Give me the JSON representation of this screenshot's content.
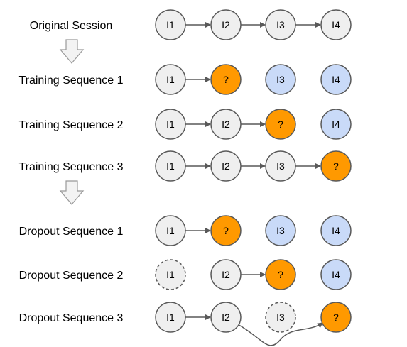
{
  "colors": {
    "default": "#efefef",
    "target": "#ff9900",
    "future": "#c9daf8",
    "stroke": "#595959",
    "edge": "#595959",
    "arrow_fill": "#f3f3f3"
  },
  "rows": [
    {
      "label": "Original Session",
      "nodes": [
        {
          "text": "I1",
          "kind": "default"
        },
        {
          "text": "I2",
          "kind": "default"
        },
        {
          "text": "I3",
          "kind": "default"
        },
        {
          "text": "I4",
          "kind": "default"
        }
      ],
      "edges": [
        [
          0,
          1
        ],
        [
          1,
          2
        ],
        [
          2,
          3
        ]
      ]
    },
    {
      "label": "Training Sequence 1",
      "nodes": [
        {
          "text": "I1",
          "kind": "default"
        },
        {
          "text": "?",
          "kind": "target"
        },
        {
          "text": "I3",
          "kind": "future"
        },
        {
          "text": "I4",
          "kind": "future"
        }
      ],
      "edges": [
        [
          0,
          1
        ]
      ]
    },
    {
      "label": "Training Sequence 2",
      "nodes": [
        {
          "text": "I1",
          "kind": "default"
        },
        {
          "text": "I2",
          "kind": "default"
        },
        {
          "text": "?",
          "kind": "target"
        },
        {
          "text": "I4",
          "kind": "future"
        }
      ],
      "edges": [
        [
          0,
          1
        ],
        [
          1,
          2
        ]
      ]
    },
    {
      "label": "Training Sequence 3",
      "nodes": [
        {
          "text": "I1",
          "kind": "default"
        },
        {
          "text": "I2",
          "kind": "default"
        },
        {
          "text": "I3",
          "kind": "default"
        },
        {
          "text": "?",
          "kind": "target"
        }
      ],
      "edges": [
        [
          0,
          1
        ],
        [
          1,
          2
        ],
        [
          2,
          3
        ]
      ]
    },
    {
      "label": "Dropout Sequence 1",
      "nodes": [
        {
          "text": "I1",
          "kind": "default"
        },
        {
          "text": "?",
          "kind": "target"
        },
        {
          "text": "I3",
          "kind": "future"
        },
        {
          "text": "I4",
          "kind": "future"
        }
      ],
      "edges": [
        [
          0,
          1
        ]
      ]
    },
    {
      "label": "Dropout Sequence 2",
      "nodes": [
        {
          "text": "I1",
          "kind": "default",
          "dropped": true
        },
        {
          "text": "I2",
          "kind": "default"
        },
        {
          "text": "?",
          "kind": "target"
        },
        {
          "text": "I4",
          "kind": "future"
        }
      ],
      "edges": [
        [
          1,
          2
        ]
      ]
    },
    {
      "label": "Dropout Sequence 3",
      "nodes": [
        {
          "text": "I1",
          "kind": "default"
        },
        {
          "text": "I2",
          "kind": "default"
        },
        {
          "text": "I3",
          "kind": "default",
          "dropped": true
        },
        {
          "text": "?",
          "kind": "target"
        }
      ],
      "edges": [
        [
          0,
          1
        ]
      ],
      "skip_edges": [
        [
          1,
          3
        ]
      ]
    }
  ],
  "down_arrows": [
    {
      "after_row": 0,
      "icon": "down-arrow-icon"
    },
    {
      "after_row": 3,
      "icon": "down-arrow-icon"
    }
  ]
}
